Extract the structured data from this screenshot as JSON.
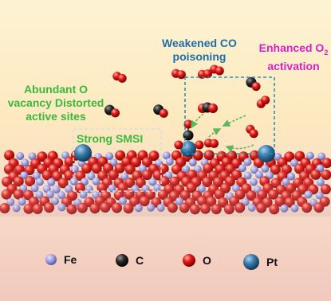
{
  "labels": {
    "co_title": "Weakened CO poisoning",
    "o2_title_main": "Enhanced O",
    "o2_sub": "2",
    "o2_title_rest": "activation",
    "vacancy_text": "Abundant O vacancy Distorted active sites",
    "smsi": "Strong SMSI"
  },
  "legend": [
    {
      "symbol": "Fe",
      "icon": "fe-atom-icon"
    },
    {
      "symbol": "C",
      "icon": "c-atom-icon"
    },
    {
      "symbol": "O",
      "icon": "o-atom-icon"
    },
    {
      "symbol": "Pt",
      "icon": "pt-atom-icon"
    }
  ],
  "colors": {
    "co_label": "#1e6fa8",
    "o2_label": "#d81fc8",
    "green_label": "#3bb83a",
    "fe": "#8f8fd6",
    "c": "#222222",
    "o": "#dd1111",
    "pt": "#2f6b95",
    "dashed_box": "#2f8fb2",
    "arrow": "#5cb85c"
  }
}
